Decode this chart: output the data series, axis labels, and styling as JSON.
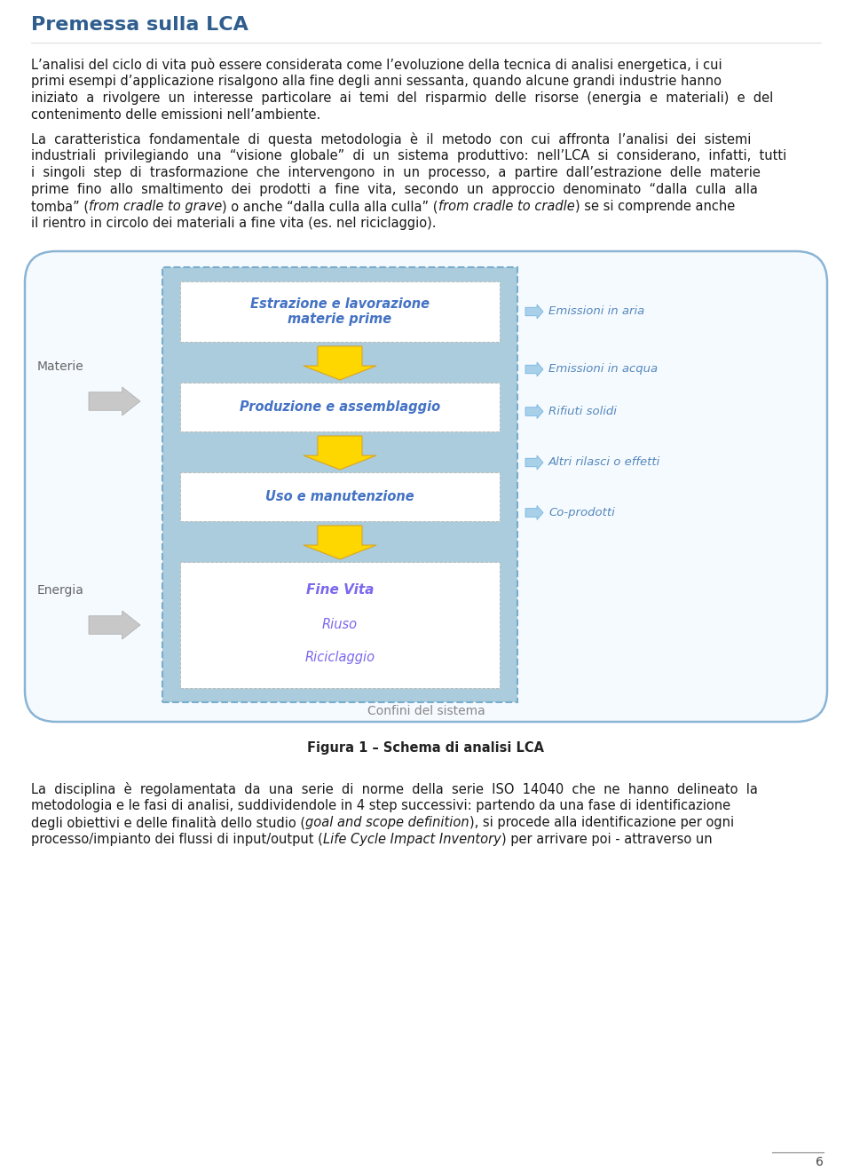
{
  "title": "Premessa sulla LCA",
  "title_color": "#2E5D8E",
  "bg_color": "#FFFFFF",
  "text_color": "#1a1a1a",
  "page_number": "6",
  "figure_caption": "Figura 1 – Schema di analisi LCA",
  "diagram": {
    "outer_edge": "#8AB4D4",
    "outer_fill": "#F5FAFF",
    "inner_fill": "#AACCDD",
    "inner_edge": "#7AADCC",
    "box_fill": "#FFFFFF",
    "box_edge": "#AAAAAA",
    "arrow_fill": "#FFD700",
    "arrow_edge": "#DAA520",
    "right_arrow_fill": "#A8D0E8",
    "right_arrow_edge": "#6AADE0",
    "left_arrow_fill": "#C8C8C8",
    "left_arrow_edge": "#AAAAAA",
    "box1_label": "Estrazione e lavorazione\nmaterie prime",
    "box2_label": "Produzione e assemblaggio",
    "box3_label": "Uso e manutenzione",
    "box4_label": "Fine Vita",
    "box4_label2": "Riuso",
    "box4_label3": "Riciclaggio",
    "box_label_color": "#4472C4",
    "box4_label_color": "#7B68EE",
    "materie_label": "Materie",
    "energia_label": "Energia",
    "side_label_color": "#666666",
    "right_labels": [
      "Emissioni in aria",
      "Emissioni in acqua",
      "Rifiuti solidi",
      "Altri rilasci o effetti",
      "Co-prodotti"
    ],
    "right_label_color": "#5588BB",
    "bottom_label": "Confini del sistema",
    "bottom_label_color": "#888888"
  }
}
